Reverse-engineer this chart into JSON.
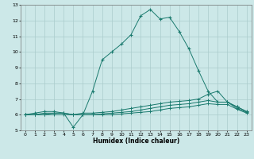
{
  "xlabel": "Humidex (Indice chaleur)",
  "xlim": [
    -0.5,
    23.5
  ],
  "ylim": [
    5,
    13
  ],
  "xticks": [
    0,
    1,
    2,
    3,
    4,
    5,
    6,
    7,
    8,
    9,
    10,
    11,
    12,
    13,
    14,
    15,
    16,
    17,
    18,
    19,
    20,
    21,
    22,
    23
  ],
  "yticks": [
    5,
    6,
    7,
    8,
    9,
    10,
    11,
    12,
    13
  ],
  "bg_color": "#cce8e8",
  "grid_color": "#aacccc",
  "line_color": "#1a7a6e",
  "curves": {
    "main": {
      "x": [
        0,
        1,
        2,
        3,
        4,
        5,
        6,
        7,
        8,
        9,
        10,
        11,
        12,
        13,
        14,
        15,
        16,
        17,
        18,
        19,
        20,
        21,
        22,
        23
      ],
      "y": [
        6.0,
        6.1,
        6.2,
        6.2,
        6.1,
        5.2,
        6.0,
        7.5,
        9.5,
        10.0,
        10.5,
        11.1,
        12.3,
        12.7,
        12.1,
        12.2,
        11.3,
        10.2,
        8.8,
        7.5,
        6.8,
        6.8,
        6.5,
        6.2
      ]
    },
    "low1": {
      "x": [
        0,
        1,
        2,
        3,
        4,
        5,
        6,
        7,
        8,
        9,
        10,
        11,
        12,
        13,
        14,
        15,
        16,
        17,
        18,
        19,
        20,
        21,
        22,
        23
      ],
      "y": [
        6.0,
        6.0,
        6.0,
        6.1,
        6.1,
        6.0,
        6.1,
        6.1,
        6.15,
        6.2,
        6.3,
        6.4,
        6.5,
        6.6,
        6.7,
        6.8,
        6.85,
        6.9,
        7.0,
        7.3,
        7.5,
        6.8,
        6.5,
        6.2
      ]
    },
    "low2": {
      "x": [
        0,
        1,
        2,
        3,
        4,
        5,
        6,
        7,
        8,
        9,
        10,
        11,
        12,
        13,
        14,
        15,
        16,
        17,
        18,
        19,
        20,
        21,
        22,
        23
      ],
      "y": [
        6.0,
        6.0,
        6.1,
        6.1,
        6.1,
        6.0,
        6.0,
        6.0,
        6.05,
        6.1,
        6.15,
        6.2,
        6.3,
        6.4,
        6.5,
        6.6,
        6.65,
        6.7,
        6.8,
        6.9,
        6.8,
        6.8,
        6.4,
        6.15
      ]
    },
    "low3": {
      "x": [
        0,
        1,
        2,
        3,
        4,
        5,
        6,
        7,
        8,
        9,
        10,
        11,
        12,
        13,
        14,
        15,
        16,
        17,
        18,
        19,
        20,
        21,
        22,
        23
      ],
      "y": [
        6.0,
        6.0,
        6.0,
        6.0,
        6.0,
        6.0,
        6.0,
        6.0,
        6.0,
        6.0,
        6.05,
        6.1,
        6.15,
        6.2,
        6.3,
        6.4,
        6.45,
        6.5,
        6.6,
        6.7,
        6.65,
        6.65,
        6.35,
        6.1
      ]
    }
  }
}
